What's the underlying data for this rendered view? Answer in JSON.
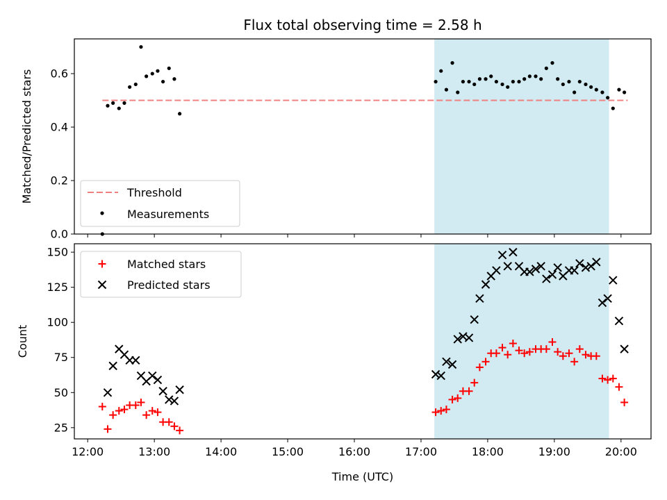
{
  "chart_data": {
    "type": "scatter",
    "title": "Flux total observing time = 2.58 h",
    "xlabel": "Time (UTC)",
    "x_ticks": [
      "12:00",
      "13:00",
      "14:00",
      "15:00",
      "16:00",
      "17:00",
      "18:00",
      "19:00",
      "20:00"
    ],
    "xlim_hours": [
      11.8,
      20.45
    ],
    "highlight_span_hours": [
      17.2,
      19.82
    ],
    "colors": {
      "measurement": "#000000",
      "threshold": "#f08080",
      "matched": "#ff0000",
      "predicted": "#000000",
      "span": "#add8e6"
    },
    "panels": [
      {
        "ylabel": "Matched/Predicted stars",
        "ylim": [
          0,
          0.73
        ],
        "y_ticks": [
          "0.0",
          "0.2",
          "0.4",
          "0.6"
        ],
        "legend_position": "lower-left",
        "threshold": {
          "name": "Threshold",
          "value": 0.5,
          "x_range_hours": [
            12.22,
            20.1
          ]
        },
        "series": [
          {
            "name": "Measurements",
            "marker": "dot",
            "points": [
              [
                12.22,
                0.0
              ],
              [
                12.3,
                0.48
              ],
              [
                12.38,
                0.49
              ],
              [
                12.47,
                0.47
              ],
              [
                12.55,
                0.49
              ],
              [
                12.63,
                0.55
              ],
              [
                12.72,
                0.56
              ],
              [
                12.8,
                0.7
              ],
              [
                12.88,
                0.59
              ],
              [
                12.97,
                0.6
              ],
              [
                13.05,
                0.61
              ],
              [
                13.13,
                0.57
              ],
              [
                13.22,
                0.62
              ],
              [
                13.3,
                0.58
              ],
              [
                13.38,
                0.45
              ],
              [
                17.22,
                0.57
              ],
              [
                17.3,
                0.61
              ],
              [
                17.38,
                0.54
              ],
              [
                17.47,
                0.64
              ],
              [
                17.55,
                0.53
              ],
              [
                17.63,
                0.57
              ],
              [
                17.72,
                0.57
              ],
              [
                17.8,
                0.56
              ],
              [
                17.88,
                0.58
              ],
              [
                17.97,
                0.58
              ],
              [
                18.05,
                0.59
              ],
              [
                18.13,
                0.57
              ],
              [
                18.22,
                0.56
              ],
              [
                18.3,
                0.55
              ],
              [
                18.38,
                0.57
              ],
              [
                18.47,
                0.57
              ],
              [
                18.55,
                0.58
              ],
              [
                18.63,
                0.59
              ],
              [
                18.72,
                0.59
              ],
              [
                18.8,
                0.58
              ],
              [
                18.88,
                0.62
              ],
              [
                18.97,
                0.64
              ],
              [
                19.05,
                0.58
              ],
              [
                19.13,
                0.56
              ],
              [
                19.22,
                0.57
              ],
              [
                19.3,
                0.53
              ],
              [
                19.38,
                0.57
              ],
              [
                19.47,
                0.56
              ],
              [
                19.55,
                0.55
              ],
              [
                19.63,
                0.54
              ],
              [
                19.72,
                0.53
              ],
              [
                19.8,
                0.51
              ],
              [
                19.88,
                0.47
              ],
              [
                19.97,
                0.54
              ],
              [
                20.05,
                0.53
              ]
            ]
          }
        ]
      },
      {
        "ylabel": "Count",
        "ylim": [
          17,
          156
        ],
        "y_ticks": [
          "25",
          "50",
          "75",
          "100",
          "125",
          "150"
        ],
        "legend_position": "upper-left",
        "series": [
          {
            "name": "Matched stars",
            "marker": "plus",
            "points": [
              [
                12.22,
                40
              ],
              [
                12.3,
                24
              ],
              [
                12.38,
                34
              ],
              [
                12.47,
                37
              ],
              [
                12.55,
                38
              ],
              [
                12.63,
                41
              ],
              [
                12.72,
                41
              ],
              [
                12.8,
                43
              ],
              [
                12.88,
                34
              ],
              [
                12.97,
                37
              ],
              [
                13.05,
                36
              ],
              [
                13.13,
                29
              ],
              [
                13.22,
                29
              ],
              [
                13.3,
                26
              ],
              [
                13.38,
                23
              ],
              [
                17.22,
                36
              ],
              [
                17.3,
                37
              ],
              [
                17.38,
                38
              ],
              [
                17.47,
                45
              ],
              [
                17.55,
                46
              ],
              [
                17.63,
                51
              ],
              [
                17.72,
                51
              ],
              [
                17.8,
                57
              ],
              [
                17.88,
                68
              ],
              [
                17.97,
                72
              ],
              [
                18.05,
                78
              ],
              [
                18.13,
                78
              ],
              [
                18.22,
                82
              ],
              [
                18.3,
                77
              ],
              [
                18.38,
                85
              ],
              [
                18.47,
                80
              ],
              [
                18.55,
                78
              ],
              [
                18.63,
                79
              ],
              [
                18.72,
                81
              ],
              [
                18.8,
                81
              ],
              [
                18.88,
                81
              ],
              [
                18.97,
                86
              ],
              [
                19.05,
                79
              ],
              [
                19.13,
                76
              ],
              [
                19.22,
                78
              ],
              [
                19.3,
                72
              ],
              [
                19.38,
                81
              ],
              [
                19.47,
                77
              ],
              [
                19.55,
                76
              ],
              [
                19.63,
                76
              ],
              [
                19.72,
                60
              ],
              [
                19.8,
                59
              ],
              [
                19.88,
                60
              ],
              [
                19.97,
                54
              ],
              [
                20.05,
                43
              ]
            ]
          },
          {
            "name": "Predicted stars",
            "marker": "x",
            "points": [
              [
                12.3,
                50
              ],
              [
                12.38,
                69
              ],
              [
                12.47,
                81
              ],
              [
                12.55,
                77
              ],
              [
                12.63,
                73
              ],
              [
                12.72,
                73
              ],
              [
                12.8,
                62
              ],
              [
                12.88,
                58
              ],
              [
                12.97,
                62
              ],
              [
                13.05,
                59
              ],
              [
                13.13,
                51
              ],
              [
                13.22,
                45
              ],
              [
                13.3,
                44
              ],
              [
                13.38,
                52
              ],
              [
                17.22,
                63
              ],
              [
                17.3,
                62
              ],
              [
                17.38,
                72
              ],
              [
                17.47,
                70
              ],
              [
                17.55,
                88
              ],
              [
                17.63,
                90
              ],
              [
                17.72,
                89
              ],
              [
                17.8,
                102
              ],
              [
                17.88,
                117
              ],
              [
                17.97,
                127
              ],
              [
                18.05,
                133
              ],
              [
                18.13,
                137
              ],
              [
                18.22,
                148
              ],
              [
                18.3,
                140
              ],
              [
                18.38,
                150
              ],
              [
                18.47,
                140
              ],
              [
                18.55,
                136
              ],
              [
                18.63,
                136
              ],
              [
                18.72,
                138
              ],
              [
                18.8,
                140
              ],
              [
                18.88,
                131
              ],
              [
                18.97,
                134
              ],
              [
                19.05,
                139
              ],
              [
                19.13,
                133
              ],
              [
                19.22,
                137
              ],
              [
                19.3,
                137
              ],
              [
                19.38,
                142
              ],
              [
                19.47,
                139
              ],
              [
                19.55,
                140
              ],
              [
                19.63,
                143
              ],
              [
                19.72,
                114
              ],
              [
                19.8,
                117
              ],
              [
                19.88,
                130
              ],
              [
                19.97,
                101
              ],
              [
                20.05,
                81
              ]
            ]
          }
        ]
      }
    ]
  }
}
